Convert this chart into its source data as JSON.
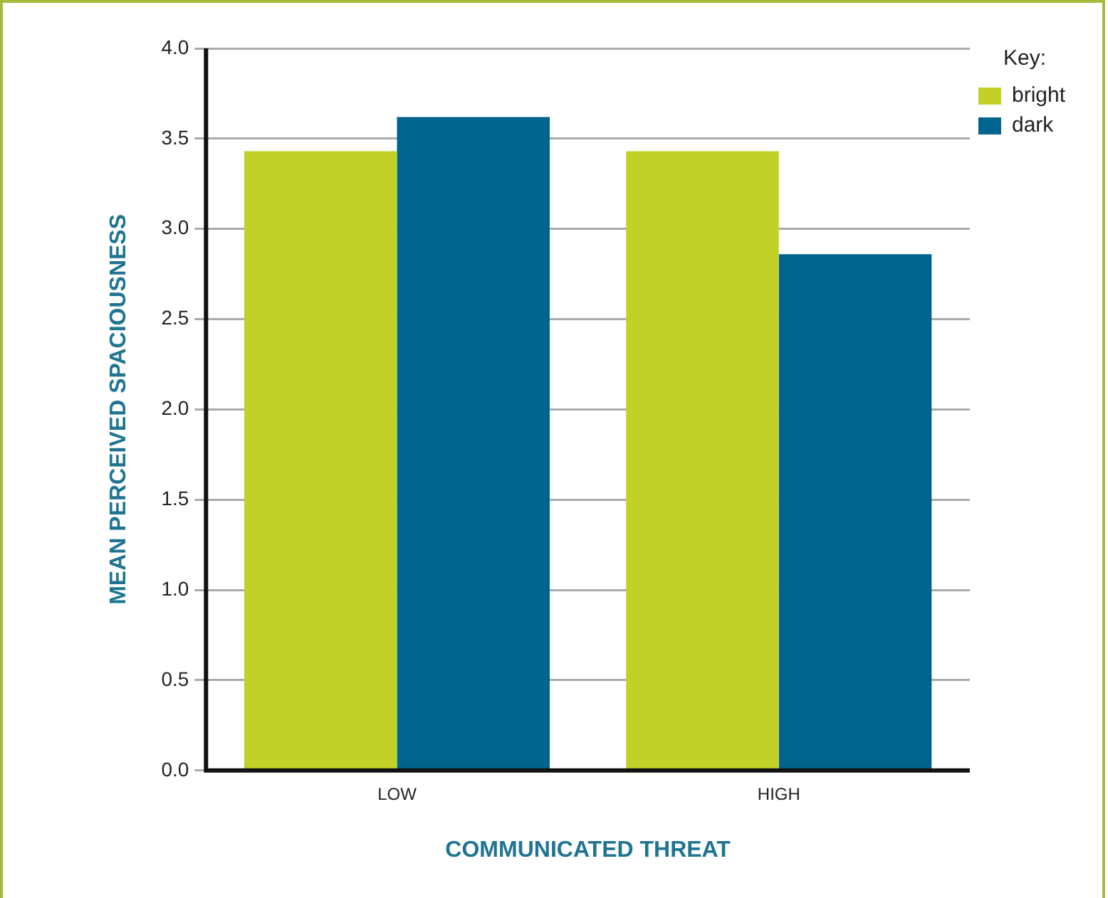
{
  "chart_data": {
    "type": "bar",
    "xlabel": "COMMUNICATED THREAT",
    "ylabel": "MEAN PERCEIVED SPACIOUSNESS",
    "legend_title": "Key:",
    "categories": [
      "LOW",
      "HIGH"
    ],
    "series": [
      {
        "name": "bright",
        "color": "#c2d128",
        "values": [
          3.43,
          3.43
        ]
      },
      {
        "name": "dark",
        "color": "#00648c",
        "values": [
          3.62,
          2.86
        ]
      }
    ],
    "ylim": [
      0,
      4
    ],
    "yticks": [
      {
        "value": 0,
        "label": "0.0"
      },
      {
        "value": 0.5,
        "label": "0.5"
      },
      {
        "value": 1,
        "label": "1.0"
      },
      {
        "value": 1.5,
        "label": "1.5"
      },
      {
        "value": 2,
        "label": "2.0"
      },
      {
        "value": 2.5,
        "label": "2.5"
      },
      {
        "value": 3,
        "label": "3.0"
      },
      {
        "value": 3.5,
        "label": "3.5"
      },
      {
        "value": 4,
        "label": "4.0"
      }
    ],
    "grid": "y",
    "legend": "top right"
  }
}
